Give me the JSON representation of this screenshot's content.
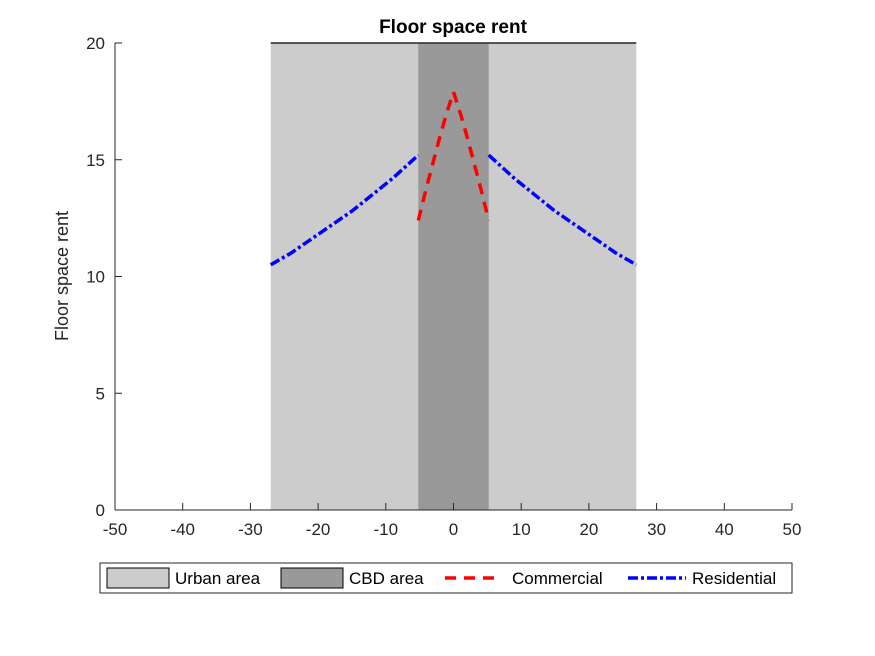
{
  "chart_data": {
    "type": "line",
    "title": "Floor space rent",
    "xlabel": "",
    "ylabel": "Floor space rent",
    "xlim": [
      -50,
      50
    ],
    "ylim": [
      0,
      20
    ],
    "xticks": [
      -50,
      -40,
      -30,
      -20,
      -10,
      0,
      10,
      20,
      30,
      40,
      50
    ],
    "yticks": [
      0,
      5,
      10,
      15,
      20
    ],
    "xtick_labels": [
      "-50",
      "-40",
      "-30",
      "-20",
      "-10",
      "0",
      "10",
      "20",
      "30",
      "40",
      "50"
    ],
    "ytick_labels": [
      "0",
      "5",
      "10",
      "15",
      "20"
    ],
    "grid": false,
    "legend_position": "bottom-outside",
    "regions": [
      {
        "name": "Urban area",
        "x": [
          -27,
          27
        ],
        "color": "#cccccc"
      },
      {
        "name": "CBD area",
        "x": [
          -5.2,
          5.2
        ],
        "color": "#999999"
      }
    ],
    "series": [
      {
        "name": "Commercial",
        "style": "dashed",
        "color": "#ff0000",
        "segments": [
          {
            "x": [
              -5.2,
              -4,
              -3,
              -2,
              -1,
              0
            ],
            "y": [
              12.4,
              13.8,
              14.9,
              16.0,
              17.0,
              17.9
            ]
          },
          {
            "x": [
              0,
              1,
              2,
              3,
              4,
              5.2
            ],
            "y": [
              17.9,
              17.0,
              16.0,
              14.9,
              13.8,
              12.4
            ]
          }
        ]
      },
      {
        "name": "Residential",
        "style": "dashdot",
        "color": "#0000ff",
        "segments": [
          {
            "x": [
              -27,
              -24,
              -21,
              -18,
              -15,
              -12,
              -9,
              -5.2
            ],
            "y": [
              10.5,
              11.0,
              11.6,
              12.2,
              12.8,
              13.5,
              14.2,
              15.2
            ]
          },
          {
            "x": [
              5.2,
              9,
              12,
              15,
              18,
              21,
              24,
              27
            ],
            "y": [
              15.2,
              14.2,
              13.5,
              12.8,
              12.2,
              11.6,
              11.0,
              10.5
            ]
          }
        ]
      }
    ],
    "legend": [
      "Urban area",
      "CBD area",
      "Commercial",
      "Residential"
    ]
  }
}
